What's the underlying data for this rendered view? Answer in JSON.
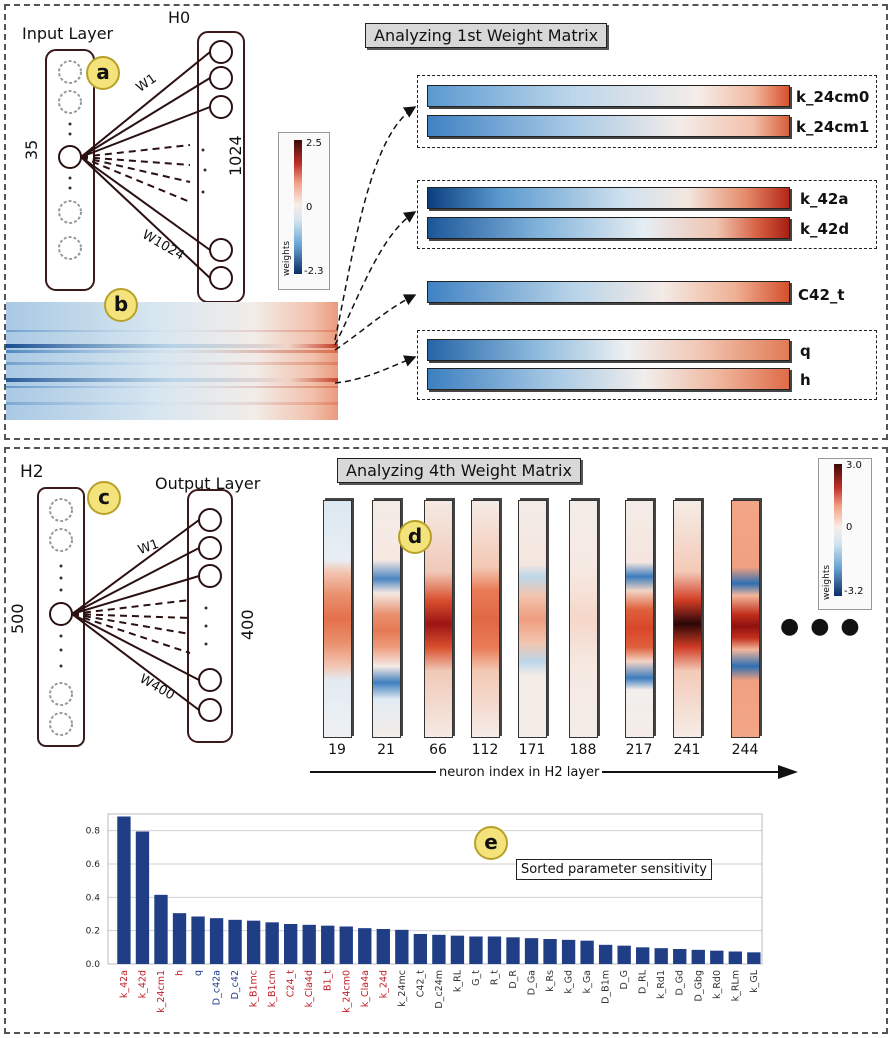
{
  "panel_a": {
    "input_layer_label": "Input Layer",
    "h0_label": "H0",
    "input_count": "35",
    "hidden_count": "1024",
    "w1_label": "W1",
    "wn_label": "W1024",
    "badge": "a"
  },
  "panel_b": {
    "badge": "b"
  },
  "colorbar1": {
    "max": "2.5",
    "mid": "0",
    "min": "-2.3",
    "title": "weights"
  },
  "first_matrix": {
    "title": "Analyzing 1st Weight Matrix",
    "rows": [
      {
        "label": "k_24cm0",
        "gradient": "linear-gradient(to right,#5a9ad0 0%,#bcd6ea 40%,#f5ede8 75%,#f2b9a1 90%,#d8502e 100%)"
      },
      {
        "label": "k_24cm1",
        "gradient": "linear-gradient(to right,#3f82c3 0%,#a9cae6 40%,#f3ece8 70%,#f3c1ab 90%,#d55f3a 100%)"
      },
      {
        "label": "k_42a",
        "gradient": "linear-gradient(to right,#0b3f7e 0%,#5b9acf 20%,#d1e2ef 55%,#f3e6de 72%,#e58b6a 88%,#b52616 100%)"
      },
      {
        "label": "k_42d",
        "gradient": "linear-gradient(to right,#1b5799 0%,#7fb1da 30%,#e6eef3 60%,#f0c4b0 80%,#d45a3c 92%,#a81f14 100%)"
      },
      {
        "label": "C42_t",
        "gradient": "linear-gradient(to right,#3f82c3 0%,#b7d3e8 40%,#f3ebe6 65%,#f0b195 85%,#d4502d 100%)"
      },
      {
        "label": "q",
        "gradient": "linear-gradient(to right,#2665a8 0%,#8dbadd 30%,#eef0f2 55%,#f2c8b5 75%,#e07b55 100%)"
      },
      {
        "label": "h",
        "gradient": "linear-gradient(to right,#3c7fc0 0%,#a8c9e5 35%,#f1eeec 60%,#f0b89f 80%,#e06b48 100%)"
      }
    ]
  },
  "panel_c": {
    "h2_label": "H2",
    "output_layer_label": "Output Layer",
    "input_count": "500",
    "output_count": "400",
    "w1_label": "W1",
    "wn_label": "W400",
    "badge": "c"
  },
  "fourth_matrix": {
    "title": "Analyzing 4th Weight Matrix",
    "badge": "d",
    "neurons": [
      "19",
      "21",
      "66",
      "112",
      "171",
      "188",
      "217",
      "241",
      "244"
    ],
    "xaxis_label": "neuron index in H2 layer",
    "ellipsis": "● ● ●"
  },
  "colorbar2": {
    "max": "3.0",
    "mid": "0",
    "min": "-3.2",
    "title": "weights"
  },
  "panel_e": {
    "badge": "e"
  },
  "chart_data": {
    "type": "bar",
    "title": "Sorted parameter sensitivity",
    "ylim": [
      0,
      0.9
    ],
    "yticks": [
      "0.0",
      "0.2",
      "0.4",
      "0.6",
      "0.8"
    ],
    "grid": true,
    "bar_color": "#1f3e86",
    "categories": [
      "k_42a",
      "k_42d",
      "k_24cm1",
      "h",
      "q",
      "D_c42a",
      "D_c42",
      "k_B1mc",
      "k_B1cm",
      "C24_t",
      "k_Cla4d",
      "B1_t",
      "k_24cm0",
      "k_Cla4a",
      "k_24d",
      "k_24mc",
      "C42_t",
      "D_c24m",
      "k_RL",
      "G_t",
      "R_t",
      "D_R",
      "D_Ga",
      "k_Rs",
      "k_Gd",
      "k_Ga",
      "D_B1m",
      "D_G",
      "D_RL",
      "k_Rd1",
      "D_Gd",
      "D_Gbg",
      "k_Rd0",
      "k_RLm",
      "k_GL"
    ],
    "label_colors": [
      "#c0202a",
      "#c0202a",
      "#c0202a",
      "#c0202a",
      "#1f3e86",
      "#1f3e86",
      "#1f3e86",
      "#c0202a",
      "#c0202a",
      "#c0202a",
      "#c0202a",
      "#c0202a",
      "#c0202a",
      "#c0202a",
      "#c0202a",
      "#333333",
      "#333333",
      "#333333",
      "#333333",
      "#333333",
      "#333333",
      "#333333",
      "#333333",
      "#333333",
      "#333333",
      "#333333",
      "#333333",
      "#333333",
      "#333333",
      "#333333",
      "#333333",
      "#333333",
      "#333333",
      "#333333",
      "#333333"
    ],
    "values": [
      0.885,
      0.795,
      0.415,
      0.305,
      0.285,
      0.275,
      0.265,
      0.26,
      0.25,
      0.24,
      0.235,
      0.23,
      0.225,
      0.215,
      0.21,
      0.205,
      0.18,
      0.175,
      0.17,
      0.165,
      0.165,
      0.16,
      0.155,
      0.15,
      0.145,
      0.14,
      0.115,
      0.11,
      0.1,
      0.095,
      0.09,
      0.085,
      0.08,
      0.075,
      0.07
    ]
  }
}
